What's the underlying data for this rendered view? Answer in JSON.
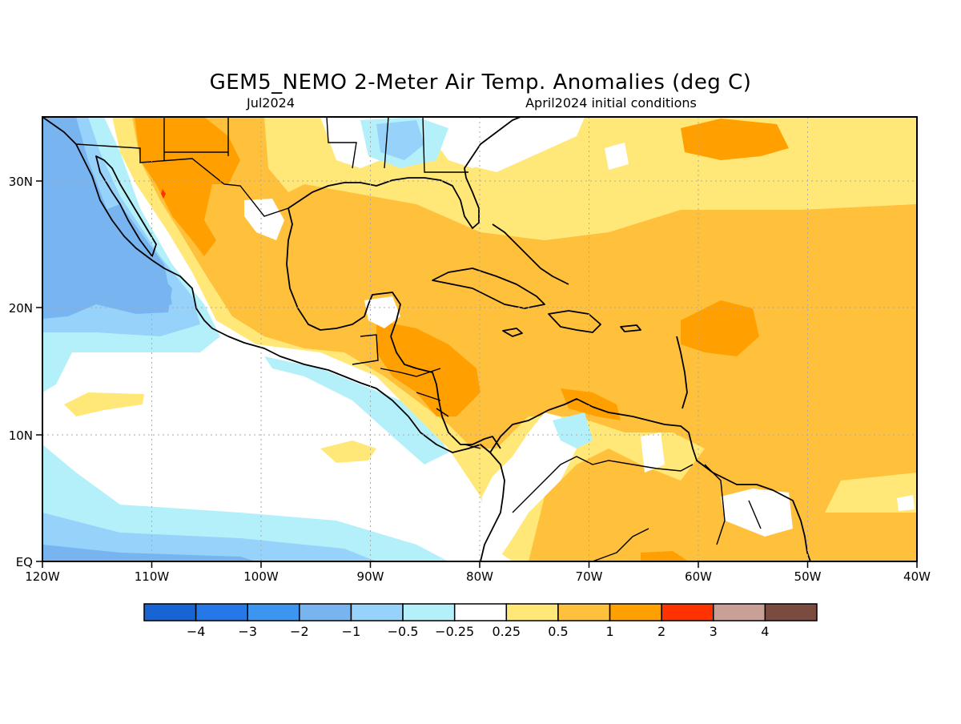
{
  "title": "GEM5_NEMO 2-Meter Air Temp. Anomalies (deg C)",
  "subtitle_left": "Jul2024",
  "subtitle_right": "April2024 initial conditions",
  "axes": {
    "x_ticks": [
      "120W",
      "110W",
      "100W",
      "90W",
      "80W",
      "70W",
      "60W",
      "50W",
      "40W"
    ],
    "y_ticks": [
      "30N",
      "20N",
      "10N",
      "EQ"
    ]
  },
  "colorbar": {
    "colors": [
      "#1864d4",
      "#2478e8",
      "#3c96f0",
      "#78b4f0",
      "#96d2fa",
      "#b4f0fa",
      "#ffffff",
      "#ffe878",
      "#ffc03c",
      "#ffa000",
      "#ff3200",
      "#c8a096",
      "#7a4c40"
    ],
    "labels": [
      "-4",
      "-3",
      "-2",
      "-1",
      "-0.5",
      "-0.25",
      "0.25",
      "0.5",
      "1",
      "2",
      "3",
      "4"
    ]
  },
  "palette": {
    "plus_025_05": "#ffe878",
    "plus_05_1": "#ffc03c",
    "plus_1_2": "#ffa000",
    "plus_2_3": "#ff3200",
    "minus_025_05": "#b4f0fa",
    "minus_05_1": "#96d2fa",
    "minus_1_2": "#78b4f0",
    "coast": "#000000",
    "grid": "#aaaaaa"
  }
}
